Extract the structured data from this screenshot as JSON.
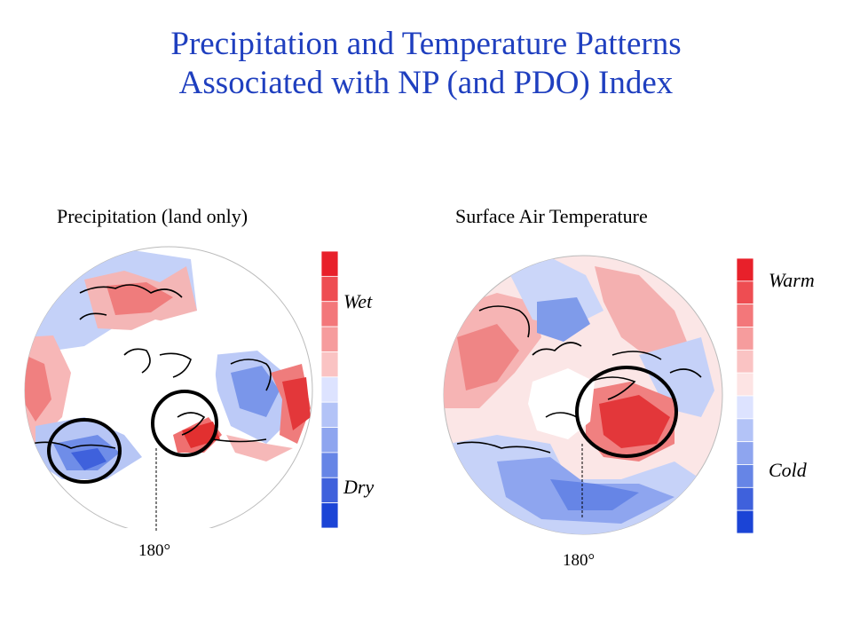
{
  "slide": {
    "title_line1": "Precipitation and Temperature Patterns",
    "title_line2": "Associated with NP (and PDO) Index"
  },
  "left_panel": {
    "title": "Precipitation (land only)",
    "scale_high_label": "Wet",
    "scale_low_label": "Dry",
    "meridian_label": "180°",
    "scale_colors": [
      "#e8202a",
      "#ee4d52",
      "#f3777a",
      "#f69c9d",
      "#fac3c3",
      "#dde3ff",
      "#b3c3f7",
      "#8ea5ef",
      "#6685e6",
      "#3f61dc",
      "#1b44d6"
    ]
  },
  "right_panel": {
    "title": "Surface Air Temperature",
    "scale_high_label": "Warm",
    "scale_low_label": "Cold",
    "meridian_label": "180°",
    "scale_colors": [
      "#e8202a",
      "#ee4d52",
      "#f3777a",
      "#f69c9d",
      "#fac3c3",
      "#fde4e4",
      "#dde3ff",
      "#b3c3f7",
      "#8ea5ef",
      "#6685e6",
      "#3f61dc",
      "#1b44d6"
    ]
  }
}
